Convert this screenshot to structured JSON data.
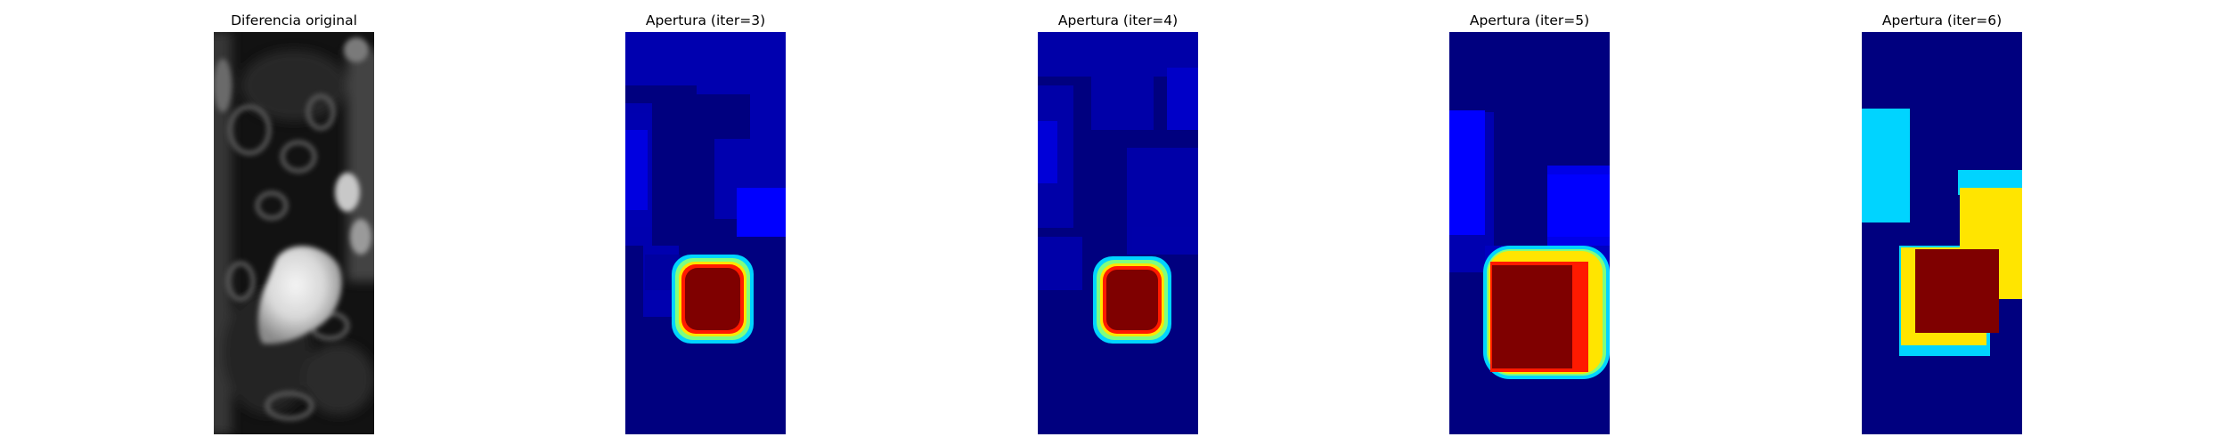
{
  "figure": {
    "panels": [
      {
        "title": "Diferencia original",
        "colormap": "gray"
      },
      {
        "title": "Apertura (iter=3)",
        "colormap": "jet"
      },
      {
        "title": "Apertura (iter=4)",
        "colormap": "jet"
      },
      {
        "title": "Apertura (iter=5)",
        "colormap": "jet"
      },
      {
        "title": "Apertura (iter=6)",
        "colormap": "jet"
      }
    ]
  },
  "colors": {
    "background": "#ffffff",
    "jet_dark_blue": "#00007f",
    "jet_blue": "#0000ff",
    "jet_cyan": "#00d4ff",
    "jet_yellow": "#ffe500",
    "jet_red": "#ff1a00",
    "jet_dark_red": "#7f0000"
  }
}
